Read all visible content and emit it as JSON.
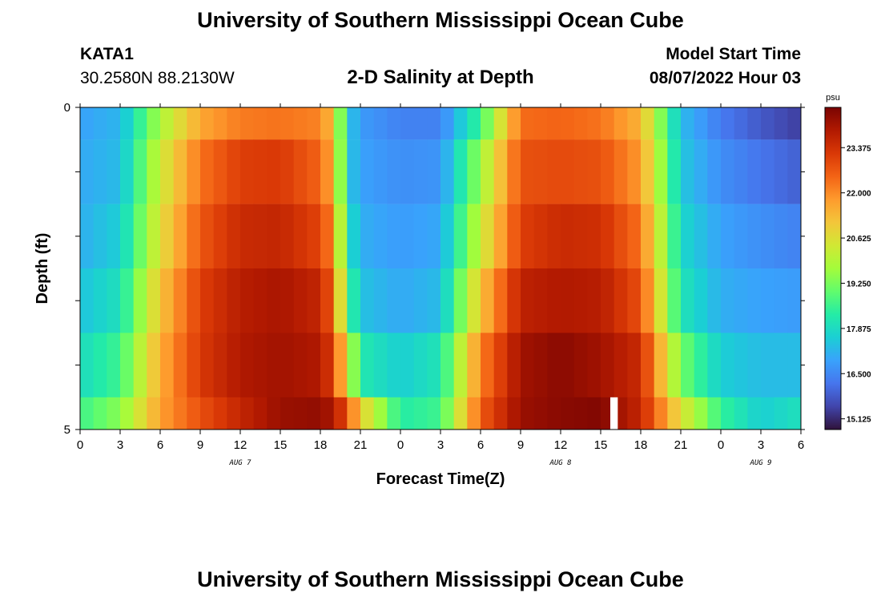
{
  "header": {
    "title": "University of Southern Mississippi Ocean Cube",
    "station_id": "KATA1",
    "station_coords": "30.2580N  88.2130W",
    "subtitle": "2-D Salinity at Depth",
    "model_start_label": "Model Start Time",
    "model_start_value": "08/07/2022 Hour 03"
  },
  "footer": {
    "title": "University of Southern Mississippi Ocean Cube"
  },
  "chart_data": {
    "type": "heatmap",
    "title": "2-D Salinity at Depth",
    "xlabel": "Forecast Time(Z)",
    "ylabel": "Depth (ft)",
    "x_start_hour": 0,
    "x_end_hour": 54,
    "x_tick_labels": [
      "0",
      "3",
      "6",
      "9",
      "12",
      "15",
      "18",
      "21",
      "0",
      "3",
      "6",
      "9",
      "12",
      "15",
      "18",
      "21",
      "0",
      "3",
      "6"
    ],
    "day_labels": [
      {
        "text": "AUG 7",
        "hour": 12
      },
      {
        "text": "AUG 8",
        "hour": 36
      },
      {
        "text": "AUG 9",
        "hour": 51
      }
    ],
    "ylim": [
      0,
      5
    ],
    "y_tick_labels": [
      "0",
      "5"
    ],
    "depth_levels": [
      0,
      1,
      2,
      3,
      4,
      5
    ],
    "colorbar": {
      "unit": "psu",
      "vmin": 14.8,
      "vmax": 24.6,
      "ticks": [
        15.125,
        16.5,
        17.875,
        19.25,
        20.625,
        22.0,
        23.375
      ],
      "tick_labels": [
        "15.125",
        "16.500",
        "17.875",
        "19.250",
        "20.625",
        "22.000",
        "23.375"
      ],
      "colormap": [
        "#30123b",
        "#4145ab",
        "#4675ed",
        "#39a2fc",
        "#1bcfd4",
        "#24eca6",
        "#61fc6c",
        "#a4fc3b",
        "#d1e834",
        "#f3c63a",
        "#fe9b2d",
        "#f36315",
        "#d93806",
        "#b11901",
        "#7a0402"
      ]
    },
    "salinity_profiles": {
      "hours": [
        0,
        3,
        6,
        9,
        12,
        15,
        18,
        19,
        20,
        21,
        24,
        27,
        30,
        33,
        36,
        39,
        42,
        45,
        48,
        51,
        54
      ],
      "rows": [
        [
          16.9,
          17.2,
          19.8,
          21.6,
          22.2,
          22.3,
          22.1,
          21.1,
          17.6,
          16.8,
          16.4,
          16.4,
          18.6,
          22.4,
          22.5,
          22.3,
          21.4,
          17.3,
          16.3,
          15.8,
          15.4
        ],
        [
          17.0,
          17.3,
          20.3,
          22.3,
          23.1,
          23.2,
          22.5,
          21.4,
          17.6,
          16.9,
          16.6,
          16.7,
          19.6,
          22.8,
          22.9,
          22.8,
          21.8,
          17.5,
          16.6,
          16.2,
          15.9
        ],
        [
          17.1,
          17.6,
          20.6,
          22.7,
          23.5,
          23.6,
          23.0,
          21.9,
          18.1,
          17.1,
          16.8,
          17.0,
          20.2,
          23.1,
          23.5,
          23.4,
          22.3,
          17.8,
          16.9,
          16.6,
          16.4
        ],
        [
          17.4,
          18.0,
          21.1,
          23.1,
          23.8,
          24.0,
          23.6,
          22.4,
          18.9,
          17.4,
          17.0,
          17.3,
          21.1,
          23.7,
          23.9,
          23.8,
          22.8,
          18.1,
          17.1,
          16.9,
          16.8
        ],
        [
          17.9,
          18.6,
          21.5,
          23.2,
          23.9,
          24.1,
          23.9,
          23.0,
          20.6,
          18.2,
          17.6,
          18.1,
          22.1,
          24.1,
          24.4,
          24.1,
          23.5,
          19.2,
          17.6,
          17.3,
          17.3
        ],
        [
          18.6,
          19.4,
          21.7,
          22.8,
          23.6,
          24.2,
          24.3,
          23.9,
          22.8,
          21.0,
          18.3,
          18.6,
          22.6,
          24.2,
          24.4,
          24.5,
          23.6,
          20.6,
          18.5,
          17.6,
          18.0
        ]
      ],
      "missing": [
        {
          "depth": 5,
          "hour": 40
        }
      ]
    }
  }
}
